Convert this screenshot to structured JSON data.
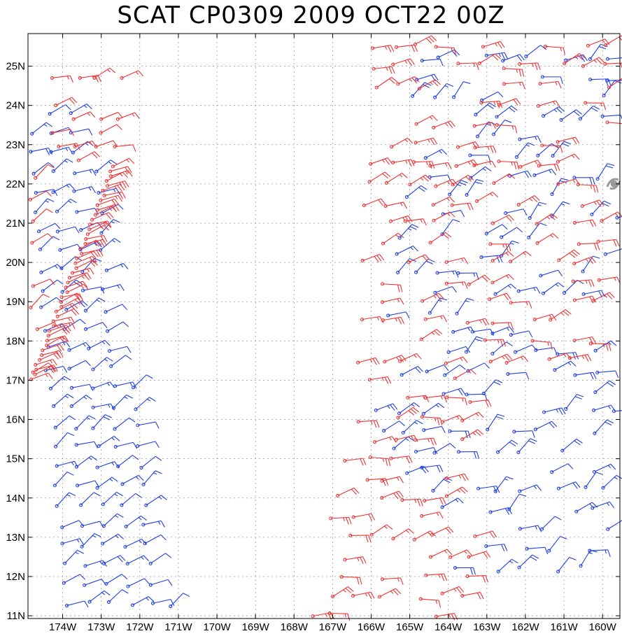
{
  "title": "SCAT CP0309 2009 OCT22 00Z",
  "colors": {
    "background": "#ffffff",
    "frame": "#000000",
    "grid": "#9a9a9a",
    "pass_red": "#ee3333",
    "pass_blue": "#1f3fe0",
    "storm_marker": "#999999"
  },
  "chart_data": {
    "type": "map",
    "projection": "lat-lon",
    "lon_range": [
      -174.9,
      -159.55
    ],
    "lat_range": [
      10.93,
      25.83
    ],
    "x_ticks": [
      "174W",
      "173W",
      "172W",
      "171W",
      "170W",
      "169W",
      "168W",
      "167W",
      "166W",
      "165W",
      "164W",
      "163W",
      "162W",
      "161W",
      "160W"
    ],
    "x_tick_values": [
      -174,
      -173,
      -172,
      -171,
      -170,
      -169,
      -168,
      -167,
      -166,
      -165,
      -164,
      -163,
      -162,
      -161,
      -160
    ],
    "y_ticks": [
      "11N",
      "12N",
      "13N",
      "14N",
      "15N",
      "16N",
      "17N",
      "18N",
      "19N",
      "20N",
      "21N",
      "22N",
      "23N",
      "24N",
      "25N"
    ],
    "y_tick_values": [
      11,
      12,
      13,
      14,
      15,
      16,
      17,
      18,
      19,
      20,
      21,
      22,
      23,
      24,
      25
    ],
    "grid": "dotted",
    "storm_symbol": {
      "name": "tropical-cyclone-symbol",
      "lon": -159.7,
      "lat": 22.0
    },
    "wind_barbs": [
      {
        "pass": "west-blue",
        "color": "blue",
        "lon_range": [
          -174.9,
          -171.1
        ],
        "lat_range": [
          11.3,
          24.2
        ],
        "speed_kt": [
          10,
          20
        ],
        "dir_deg": 60
      },
      {
        "pass": "west-red",
        "color": "red",
        "lon_range": [
          -174.9,
          -172.0
        ],
        "lat_range": [
          16.8,
          24.9
        ],
        "speed_kt": [
          10,
          25
        ],
        "dir_deg": 70
      },
      {
        "pass": "east-blue",
        "color": "blue",
        "lon_range": [
          -166.3,
          -159.6
        ],
        "lat_range": [
          12.2,
          25.5
        ],
        "speed_kt": [
          10,
          25
        ],
        "dir_deg": 60
      },
      {
        "pass": "east-red",
        "color": "red",
        "lon_range": [
          -167.6,
          -159.6
        ],
        "lat_range": [
          11.0,
          25.5
        ],
        "speed_kt": [
          15,
          30
        ],
        "dir_deg": 75
      }
    ]
  }
}
